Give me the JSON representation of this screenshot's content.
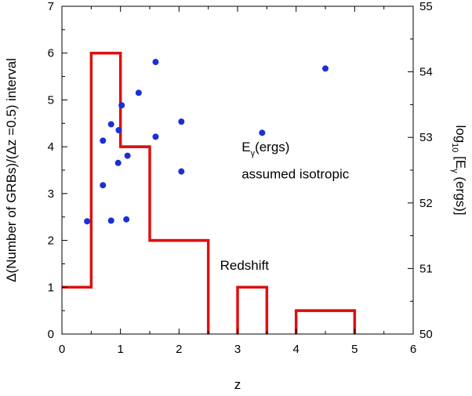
{
  "chart_data": {
    "type": "histogram+scatter",
    "histogram": {
      "name": "Redshift",
      "label": "Redshift",
      "color": "#dd1111",
      "steps": [
        {
          "x0": 0,
          "x1": 0.5,
          "y": 1
        },
        {
          "x0": 0.5,
          "x1": 1.0,
          "y": 6
        },
        {
          "x0": 1.0,
          "x1": 1.5,
          "y": 4
        },
        {
          "x0": 1.5,
          "x1": 2.5,
          "y": 2
        },
        {
          "x0": 3.0,
          "x1": 3.5,
          "y": 1
        },
        {
          "x0": 4.0,
          "x1": 5.0,
          "y": 0.5
        }
      ]
    },
    "scatter": {
      "color": "#1a2fd6",
      "label_line1": "E",
      "label_sub": "γ",
      "label_line1_rest": "(ergs)",
      "label_line2": "assumed isotropic",
      "points": [
        {
          "z": 0.43,
          "logE": 51.72
        },
        {
          "z": 0.7,
          "logE": 52.27
        },
        {
          "z": 0.7,
          "logE": 52.95
        },
        {
          "z": 0.84,
          "logE": 51.73
        },
        {
          "z": 0.84,
          "logE": 53.2
        },
        {
          "z": 0.96,
          "logE": 52.61
        },
        {
          "z": 0.97,
          "logE": 53.11
        },
        {
          "z": 1.02,
          "logE": 53.49
        },
        {
          "z": 1.1,
          "logE": 51.75
        },
        {
          "z": 1.12,
          "logE": 52.72
        },
        {
          "z": 1.31,
          "logE": 53.68
        },
        {
          "z": 1.6,
          "logE": 53.01
        },
        {
          "z": 1.6,
          "logE": 54.15
        },
        {
          "z": 2.04,
          "logE": 52.48
        },
        {
          "z": 2.04,
          "logE": 53.24
        },
        {
          "z": 3.42,
          "logE": 53.07
        },
        {
          "z": 4.5,
          "logE": 54.05
        }
      ]
    },
    "x_axis": {
      "label": "z",
      "range": [
        0,
        6
      ],
      "ticks": [
        0,
        1,
        2,
        3,
        4,
        5,
        6
      ],
      "tick_labels": [
        "0",
        "1",
        "2",
        "3",
        "4",
        "5",
        "6"
      ]
    },
    "y_axis_left": {
      "label": "Δ(Number of GRBs)/(Δz =0.5) interval",
      "range": [
        0,
        7
      ],
      "ticks": [
        0,
        1,
        2,
        3,
        4,
        5,
        6,
        7
      ],
      "tick_labels": [
        "0",
        "1",
        "2",
        "3",
        "4",
        "5",
        "6",
        "7"
      ]
    },
    "y_axis_right": {
      "label_main": "log",
      "label_sub10": "10",
      "label_rest1": " [E",
      "label_subgamma": "γ",
      "label_rest2": " (ergs)]",
      "range": [
        50,
        55
      ],
      "ticks": [
        50,
        51,
        52,
        53,
        54,
        55
      ],
      "tick_labels": [
        "50",
        "51",
        "52",
        "53",
        "54",
        "55"
      ]
    },
    "grid": false
  }
}
